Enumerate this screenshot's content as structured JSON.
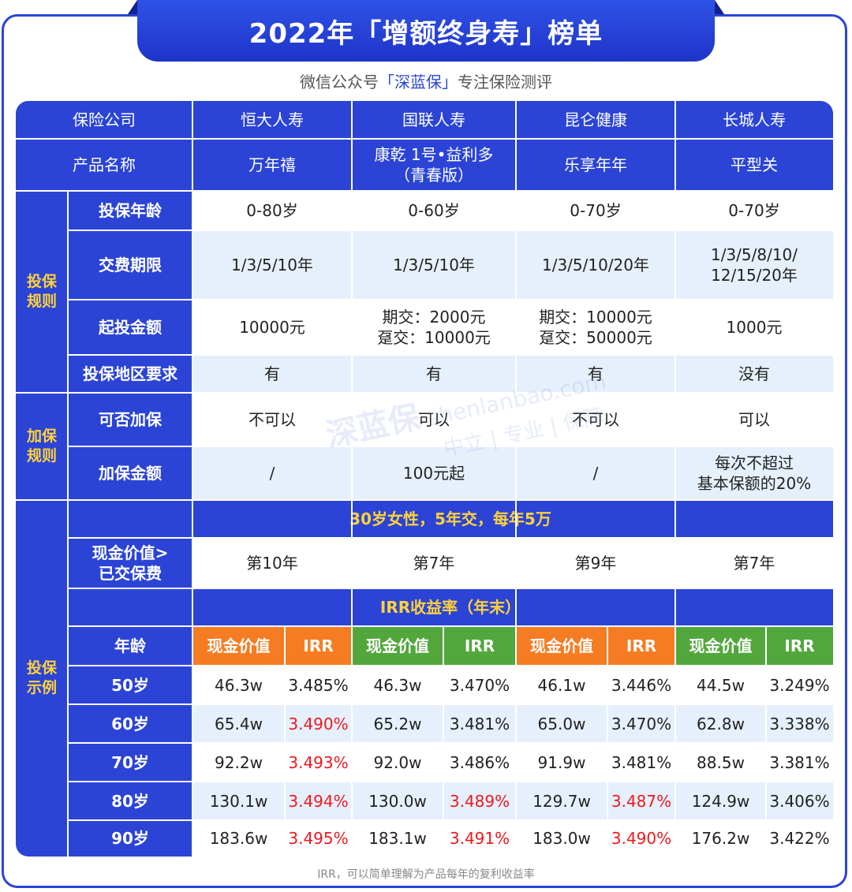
{
  "banner": {
    "title": "2022年「增额终身寿」榜单"
  },
  "subtitle": {
    "prefix": "微信公众号",
    "highlight": "「深蓝保」",
    "suffix": "专注保险测评"
  },
  "header": {
    "company_label": "保险公司",
    "product_label": "产品名称",
    "companies": [
      "恒大人寿",
      "国联人寿",
      "昆仑健康",
      "长城人寿"
    ],
    "products": [
      "万年禧",
      "康乾 1号•益利多\n（青春版）",
      "乐享年年",
      "平型关"
    ]
  },
  "groups": {
    "rules": "投保\n规则",
    "add": "加保\n规则",
    "example": "投保\n示例"
  },
  "rules": [
    {
      "label": "投保年龄",
      "values": [
        "0-80岁",
        "0-60岁",
        "0-70岁",
        "0-70岁"
      ]
    },
    {
      "label": "交费期限",
      "values": [
        "1/3/5/10年",
        "1/3/5/10年",
        "1/3/5/10/20年",
        "1/3/5/8/10/\n12/15/20年"
      ]
    },
    {
      "label": "起投金额",
      "values": [
        "10000元",
        "期交：2000元\n趸交：10000元",
        "期交：10000元\n趸交：50000元",
        "1000元"
      ]
    },
    {
      "label": "投保地区要求",
      "values": [
        "有",
        "有",
        "有",
        "没有"
      ]
    }
  ],
  "add_rules": [
    {
      "label": "可否加保",
      "values": [
        "不可以",
        "可以",
        "不可以",
        "可以"
      ]
    },
    {
      "label": "加保金额",
      "values": [
        "/",
        "100元起",
        "/",
        "每次不超过\n基本保额的20%"
      ]
    }
  ],
  "example": {
    "band1": "30岁女性，5年交，每年5万",
    "cv_label": "现金价值>\n已交保费",
    "cv_values": [
      "第10年",
      "第7年",
      "第9年",
      "第7年"
    ],
    "band2": "IRR收益率（年末）",
    "age_label": "年龄",
    "col_cash": "现金价值",
    "col_irr": "IRR",
    "rows": [
      {
        "age": "50岁",
        "cells": [
          "46.3w",
          "3.485%",
          "46.3w",
          "3.470%",
          "46.1w",
          "3.446%",
          "44.5w",
          "3.249%"
        ]
      },
      {
        "age": "60岁",
        "cells": [
          "65.4w",
          "3.490%",
          "65.2w",
          "3.481%",
          "65.0w",
          "3.470%",
          "62.8w",
          "3.338%"
        ]
      },
      {
        "age": "70岁",
        "cells": [
          "92.2w",
          "3.493%",
          "92.0w",
          "3.486%",
          "91.9w",
          "3.481%",
          "88.5w",
          "3.381%"
        ]
      },
      {
        "age": "80岁",
        "cells": [
          "130.1w",
          "3.494%",
          "130.0w",
          "3.489%",
          "129.7w",
          "3.487%",
          "124.9w",
          "3.406%"
        ]
      },
      {
        "age": "90岁",
        "cells": [
          "183.6w",
          "3.495%",
          "183.1w",
          "3.491%",
          "183.0w",
          "3.490%",
          "176.2w",
          "3.422%"
        ]
      }
    ],
    "highlight": [
      [
        false,
        false,
        false,
        false,
        false,
        false,
        false,
        false
      ],
      [
        false,
        true,
        false,
        false,
        false,
        false,
        false,
        false
      ],
      [
        false,
        true,
        false,
        false,
        false,
        false,
        false,
        false
      ],
      [
        false,
        true,
        false,
        true,
        false,
        true,
        false,
        false
      ],
      [
        false,
        true,
        false,
        true,
        false,
        true,
        false,
        false
      ]
    ]
  },
  "watermark": {
    "logo": "深蓝保",
    "domain": "shenlanbao.com",
    "slogan": "中立 | 专业 | 保障"
  },
  "colors": {
    "primary": "#2b44d6",
    "light_row": "#e6f0fc",
    "orange": "#f57c22",
    "green": "#52a73c",
    "gold": "#ffd23a",
    "red": "#f0191e"
  },
  "footnote": "IRR，可以简单理解为产品每年的复利收益率"
}
